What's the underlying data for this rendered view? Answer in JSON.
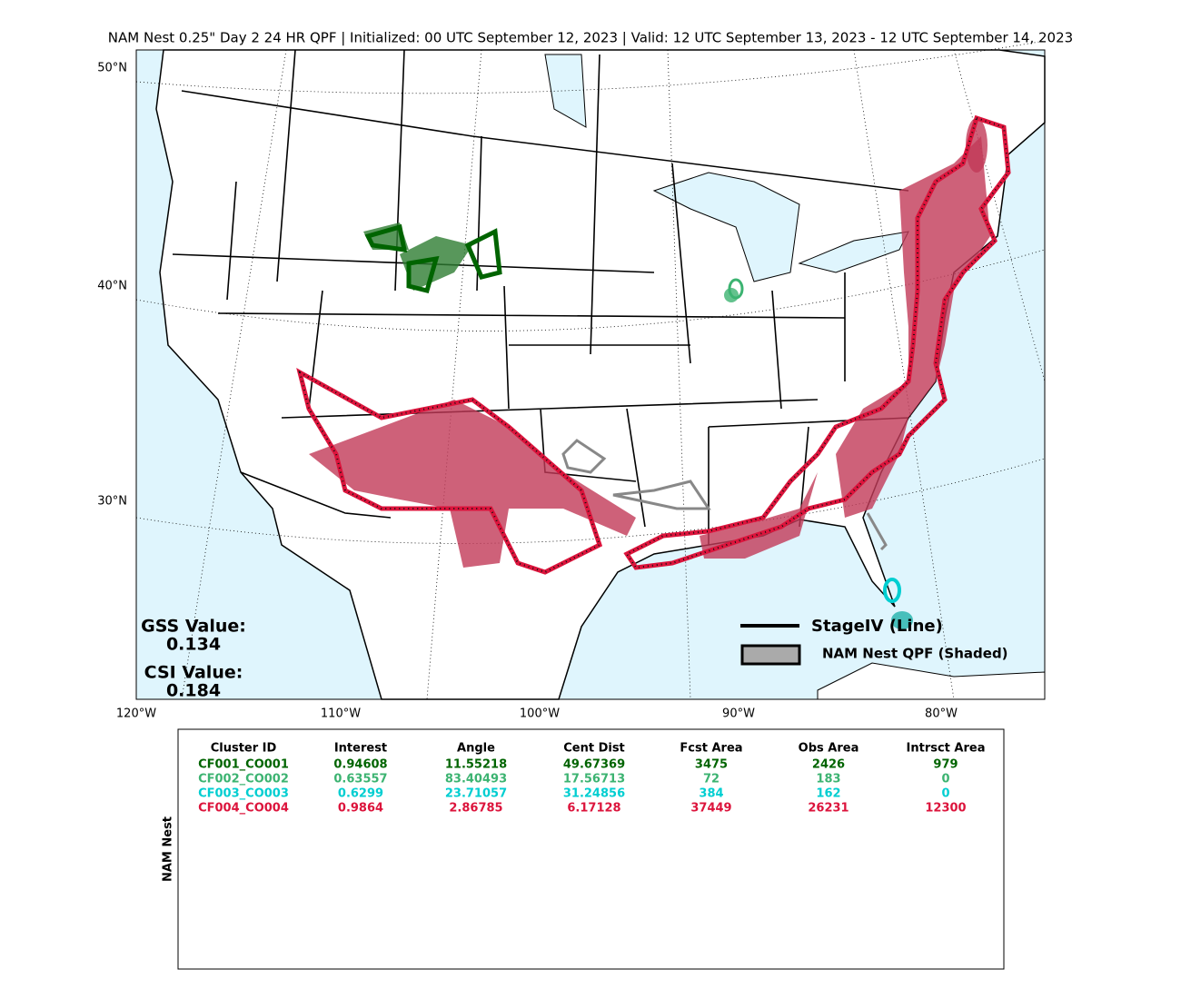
{
  "title": "NAM Nest 0.25\" Day 2 24 HR QPF | Initialized: 00 UTC September 12, 2023 | Valid: 12 UTC September 13, 2023 - 12 UTC September 14, 2023",
  "map": {
    "lat_labels": [
      "50°N",
      "40°N",
      "30°N"
    ],
    "lon_labels": [
      "120°W",
      "110°W",
      "100°W",
      "90°W",
      "80°W"
    ],
    "gss_label": "GSS Value:",
    "gss_value": 0.134,
    "csi_label": "CSI Value:",
    "csi_value": 0.184,
    "legend": [
      "StageIV (Line)",
      "NAM Nest QPF (Shaded)"
    ]
  },
  "table": {
    "side_label": "NAM Nest",
    "header": [
      "Cluster ID",
      "Interest",
      "Angle",
      "Cent Dist",
      "Fcst Area",
      "Obs Area",
      "Intrsct Area"
    ],
    "rows": [
      {
        "color": "#006400",
        "cells": [
          "CF001_CO001",
          0.94608,
          11.55218,
          49.67369,
          3475,
          2426,
          979
        ]
      },
      {
        "color": "#3cb371",
        "cells": [
          "CF002_CO002",
          0.63557,
          83.40493,
          17.56713,
          72,
          183,
          0
        ]
      },
      {
        "color": "#00ced1",
        "cells": [
          "CF003_CO003",
          0.6299,
          23.71057,
          31.24856,
          384,
          162,
          0
        ]
      },
      {
        "color": "#dc143c",
        "cells": [
          "CF004_CO004",
          0.9864,
          2.86785,
          6.17128,
          37449,
          26231,
          12300
        ]
      }
    ]
  }
}
